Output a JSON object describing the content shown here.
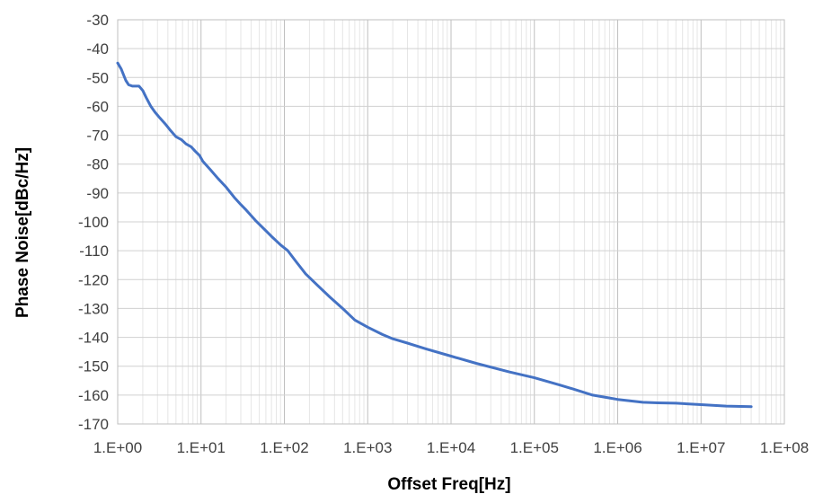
{
  "chart_data": {
    "type": "line",
    "title": "",
    "xlabel": "Offset Freq[Hz]",
    "ylabel": "Phase Noise[dBc/Hz]",
    "x_scale": "log",
    "xlim": [
      1,
      100000000
    ],
    "ylim": [
      -170,
      -30
    ],
    "x_tick_labels": [
      "1.E+00",
      "1.E+01",
      "1.E+02",
      "1.E+03",
      "1.E+04",
      "1.E+05",
      "1.E+06",
      "1.E+07",
      "1.E+08"
    ],
    "y_tick_labels": [
      "-30",
      "-40",
      "-50",
      "-60",
      "-70",
      "-80",
      "-90",
      "-100",
      "-110",
      "-120",
      "-130",
      "-140",
      "-150",
      "-160",
      "-170"
    ],
    "grid": true,
    "legend": "none",
    "series": [
      {
        "color": "#4472c4",
        "x": [
          1.0,
          1.1,
          1.25,
          1.35,
          1.5,
          1.65,
          1.8,
          2.0,
          2.2,
          2.5,
          2.8,
          3.2,
          3.7,
          4.2,
          5.0,
          5.8,
          6.6,
          7.6,
          8.5,
          9.6,
          10.5,
          13,
          16,
          20,
          25,
          30,
          35,
          45,
          55,
          70,
          90,
          110,
          140,
          180,
          250,
          350,
          500,
          700,
          1000,
          1500,
          2000,
          3000,
          5000,
          10000,
          20000,
          50000,
          100000,
          200000,
          300000,
          500000,
          800000,
          1000000,
          2000000,
          3000000,
          5000000,
          10000000,
          20000000,
          40000000
        ],
        "y": [
          -45,
          -47,
          -51,
          -52.5,
          -53,
          -53,
          -53,
          -54.5,
          -57,
          -60,
          -62,
          -64,
          -66,
          -68,
          -70.5,
          -71.5,
          -73,
          -74,
          -75.5,
          -77,
          -79,
          -82,
          -85,
          -88,
          -91.5,
          -94,
          -96,
          -99.5,
          -102,
          -105,
          -108,
          -110,
          -114,
          -118,
          -122,
          -126,
          -130,
          -134,
          -136.5,
          -139,
          -140.5,
          -142,
          -144,
          -146.5,
          -149,
          -152,
          -154,
          -156.5,
          -158,
          -160,
          -161,
          -161.5,
          -162.5,
          -162.7,
          -162.8,
          -163.3,
          -163.8,
          -164
        ]
      }
    ]
  }
}
